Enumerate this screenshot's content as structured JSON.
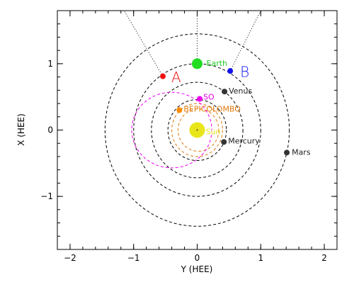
{
  "chart_data": {
    "type": "scatter",
    "title": "",
    "xlabel": "Y (HEE)",
    "ylabel": "X (HEE)",
    "xlim": [
      -2.2,
      2.2
    ],
    "ylim": [
      1.8,
      -1.8
    ],
    "x_ticks": [
      -2,
      -1,
      0,
      1,
      2
    ],
    "x_tick_labels": [
      "−2",
      "−1",
      "0",
      "1",
      "2"
    ],
    "y_ticks": [
      -1,
      0,
      1
    ],
    "y_tick_labels": [
      "−1",
      "0",
      "1"
    ],
    "grid": false,
    "legend": "none",
    "bodies": [
      {
        "name": "Sun",
        "label": "Sun",
        "y": 0.0,
        "x": 0.0,
        "color": "#e8e619",
        "big": true
      },
      {
        "name": "Mercury",
        "label": "Mercury",
        "y": 0.42,
        "x": -0.18,
        "color": "#333333"
      },
      {
        "name": "Venus",
        "label": "Venus",
        "y": 0.43,
        "x": 0.58,
        "color": "#333333"
      },
      {
        "name": "Mars",
        "label": "Mars",
        "y": 1.41,
        "x": -0.34,
        "color": "#333333"
      },
      {
        "name": "Earth",
        "label": "Earth",
        "y": 0.0,
        "x": 1.0,
        "color": "#22dd22",
        "big": true
      },
      {
        "name": "BepiColombo",
        "label": "BEPICOLOMBO",
        "y": -0.28,
        "x": 0.3,
        "color": "#ff8c00"
      },
      {
        "name": "SO",
        "label": "SO",
        "y": 0.04,
        "x": 0.47,
        "color": "#ee00ee"
      },
      {
        "name": "STEREO-A",
        "label": "A",
        "y": -0.54,
        "x": 0.81,
        "color": "#ee1111"
      },
      {
        "name": "STEREO-B",
        "label": "B",
        "y": 0.52,
        "x": 0.89,
        "color": "#1111ee"
      }
    ],
    "orbits": [
      {
        "body": "Mercury",
        "radius": 0.4,
        "color": "#e07b10",
        "center_y": 0.0,
        "center_x": 0.0
      },
      {
        "body": "Mercury",
        "radius": 0.32,
        "color": "#e07b10",
        "center_y": 0.02,
        "center_x": 0.0
      },
      {
        "body": "Mercury",
        "radius": 0.46,
        "color": "#000000",
        "center_y": 0.0,
        "center_x": 0.0
      },
      {
        "body": "Venus",
        "radius": 0.72,
        "color": "#000000",
        "center_y": 0.0,
        "center_x": 0.0
      },
      {
        "body": "Earth",
        "radius": 1.0,
        "color": "#000000",
        "center_y": 0.0,
        "center_x": 0.0
      },
      {
        "body": "Mars",
        "radius": 1.45,
        "color": "#000000",
        "center_y": 0.0,
        "center_x": 0.0
      },
      {
        "body": "SO",
        "radius_y": 0.63,
        "radius_x": 0.57,
        "color": "#ee00ee",
        "center_y": -0.4,
        "center_x": 0.0
      }
    ],
    "field_lines": [
      {
        "from": "Earth",
        "end_y": 0.0,
        "end_x": 1.8
      },
      {
        "from": "STEREO-A",
        "end_y": -1.15,
        "end_x": 1.8
      },
      {
        "from": "STEREO-B",
        "end_y": 1.0,
        "end_x": 1.8
      }
    ]
  }
}
